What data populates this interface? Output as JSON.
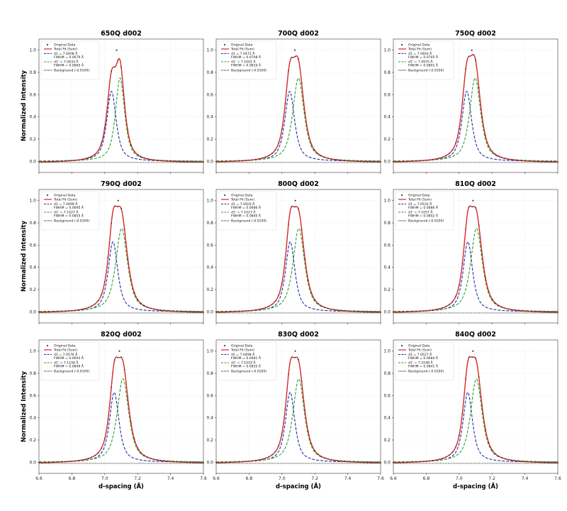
{
  "chart_data": {
    "type": "line",
    "xlabel": "d-spacing (Å)",
    "ylabel": "Normalized Intensity",
    "xlim": [
      6.6,
      7.6
    ],
    "ylim": [
      -0.1,
      1.1
    ],
    "xticks": [
      "6.6",
      "6.8",
      "7.0",
      "7.2",
      "7.4",
      "7.6"
    ],
    "yticks": [
      "0.0",
      "0.2",
      "0.4",
      "0.6",
      "0.8",
      "1.0"
    ],
    "grid": true,
    "legend_position": "top-left",
    "series_names": {
      "original": "Original Data",
      "total": "Total Fit (Sum)",
      "background": "Background (-0.0100)"
    },
    "colors": {
      "original": "#3a3a3a",
      "total": "#d62728",
      "peak1": "#1f2fa8",
      "peak2": "#2ca02c",
      "background": "#000000"
    },
    "background_level": -0.01,
    "panels": [
      {
        "title": "650Q d002",
        "d1": 7.0408,
        "fwhm1": 0.0679,
        "d2": 7.0933,
        "fwhm2": 0.0665,
        "legend": {
          "d1": "d1 = 7.0408 Å",
          "f1": "FWHM = 0.0679 Å",
          "d2": "d1' = 7.0933 Å",
          "f2": "FWHM = 0.0665 Å"
        }
      },
      {
        "title": "700Q d002",
        "d1": 7.0472,
        "fwhm1": 0.0708,
        "d2": 7.1002,
        "fwhm2": 0.0819,
        "legend": {
          "d1": "d1 = 7.0472 Å",
          "f1": "FWHM = 0.0708 Å",
          "d2": "d1' = 7.1002 Å",
          "f2": "FWHM = 0.0819 Å"
        }
      },
      {
        "title": "750Q d002",
        "d1": 7.0463,
        "fwhm1": 0.0705,
        "d2": 7.0975,
        "fwhm2": 0.0801,
        "legend": {
          "d1": "d1 = 7.0463 Å",
          "f1": "FWHM = 0.0705 Å",
          "d2": "d1' = 7.0975 Å",
          "f2": "FWHM = 0.0801 Å"
        }
      },
      {
        "title": "790Q d002",
        "d1": 7.0499,
        "fwhm1": 0.0695,
        "d2": 7.1027,
        "fwhm2": 0.0855,
        "legend": {
          "d1": "d1 = 7.0499 Å",
          "f1": "FWHM = 0.0695 Å",
          "d2": "d1' = 7.1027 Å",
          "f2": "FWHM = 0.0855 Å"
        }
      },
      {
        "title": "800Q d002",
        "d1": 7.0503,
        "fwhm1": 0.0686,
        "d2": 7.1027,
        "fwhm2": 0.0845,
        "legend": {
          "d1": "d1 = 7.0503 Å",
          "f1": "FWHM = 0.0686 Å",
          "d2": "d1' = 7.1027 Å",
          "f2": "FWHM = 0.0845 Å"
        }
      },
      {
        "title": "810Q d002",
        "d1": 7.0532,
        "fwhm1": 0.0686,
        "d2": 7.1057,
        "fwhm2": 0.0852,
        "legend": {
          "d1": "d1 = 7.0532 Å",
          "f1": "FWHM = 0.0686 Å",
          "d2": "d1' = 7.1057 Å",
          "f2": "FWHM = 0.0852 Å"
        }
      },
      {
        "title": "820Q d002",
        "d1": 7.0576,
        "fwhm1": 0.0693,
        "d2": 7.1106,
        "fwhm2": 0.0849,
        "legend": {
          "d1": "d1 = 7.0576 Å",
          "f1": "FWHM = 0.0693 Å",
          "d2": "d1' = 7.1106 Å",
          "f2": "FWHM = 0.0849 Å"
        }
      },
      {
        "title": "830Q d002",
        "d1": 7.0498,
        "fwhm1": 0.0681,
        "d2": 7.1019,
        "fwhm2": 0.0835,
        "legend": {
          "d1": "d1 = 7.0498 Å",
          "f1": "FWHM = 0.0681 Å",
          "d2": "d1' = 7.1019 Å",
          "f2": "FWHM = 0.0835 Å"
        }
      },
      {
        "title": "840Q d002",
        "d1": 7.0527,
        "fwhm1": 0.0684,
        "d2": 7.1048,
        "fwhm2": 0.0841,
        "legend": {
          "d1": "d1 = 7.0527 Å",
          "f1": "FWHM = 0.0684 Å",
          "d2": "d1' = 7.1048 Å",
          "f2": "FWHM = 0.0841 Å"
        }
      }
    ]
  }
}
